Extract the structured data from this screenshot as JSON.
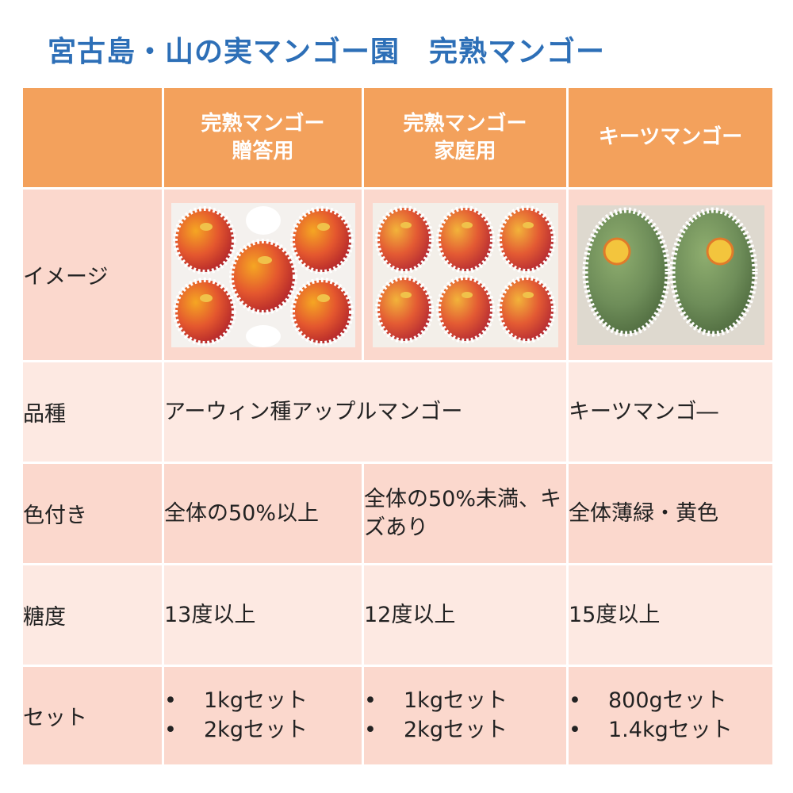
{
  "title": "宮古島・山の実マンゴー園　完熟マンゴー",
  "columns": [
    {
      "line1": "完熟マンゴー",
      "line2": "贈答用"
    },
    {
      "line1": "完熟マンゴー",
      "line2": "家庭用"
    },
    {
      "line1": "キーツマンゴー",
      "line2": ""
    }
  ],
  "rows": {
    "image": {
      "label": "イメージ"
    },
    "variety": {
      "label": "品種",
      "apple": "アーウィン種アップルマンゴー",
      "keitt": "キーツマンゴ―"
    },
    "color": {
      "label": "色付き",
      "gift": "全体の50%以上",
      "home": "全体の50%未満、キズあり",
      "keitt": "全体薄緑・黄色"
    },
    "sugar": {
      "label": "糖度",
      "gift": "13度以上",
      "home": "12度以上",
      "keitt": "15度以上"
    },
    "set": {
      "label": "セット",
      "bullet": "•",
      "gift": [
        "1kgセット",
        "2kgセット"
      ],
      "home": [
        "1kgセット",
        "2kgセット"
      ],
      "keitt": [
        "800gセット",
        "1.4kgセット"
      ]
    }
  },
  "colors": {
    "title": "#2d6fb7",
    "header_bg": "#f3a15c",
    "row_pink": "#fbd8cd",
    "row_light": "#fde9e2"
  }
}
